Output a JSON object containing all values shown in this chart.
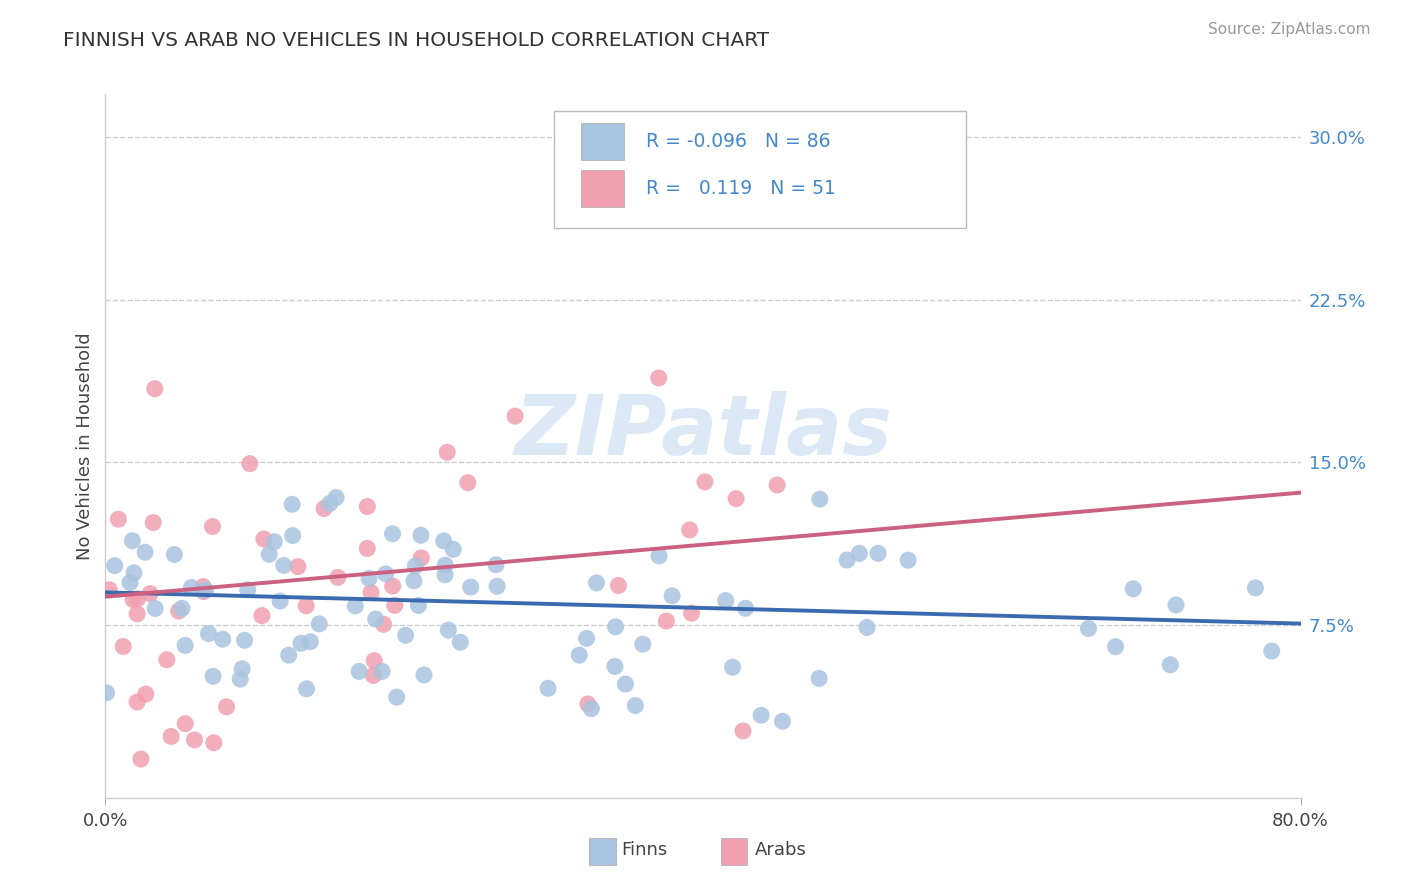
{
  "title": "FINNISH VS ARAB NO VEHICLES IN HOUSEHOLD CORRELATION CHART",
  "source": "Source: ZipAtlas.com",
  "ylabel": "No Vehicles in Household",
  "xlim": [
    0.0,
    0.8
  ],
  "ylim": [
    -0.005,
    0.32
  ],
  "yticks_right": [
    0.075,
    0.15,
    0.225,
    0.3
  ],
  "ytickslabels_right": [
    "7.5%",
    "15.0%",
    "22.5%",
    "30.0%"
  ],
  "finn_color": "#a8c4e0",
  "arab_color": "#f0a0b0",
  "finn_line_color": "#3a6ab0",
  "arab_line_color": "#cc6080",
  "watermark_text": "ZIPatlas",
  "finn_R": -0.096,
  "finn_N": 86,
  "finn_intercept": 0.09,
  "finn_slope": -0.018,
  "arab_R": 0.119,
  "arab_N": 51,
  "arab_intercept": 0.088,
  "arab_slope": 0.06,
  "background_color": "#ffffff",
  "grid_color": "#cccccc",
  "legend_finn_text": "R = -0.096   N = 86",
  "legend_arab_text": "R =   0.119   N = 51"
}
